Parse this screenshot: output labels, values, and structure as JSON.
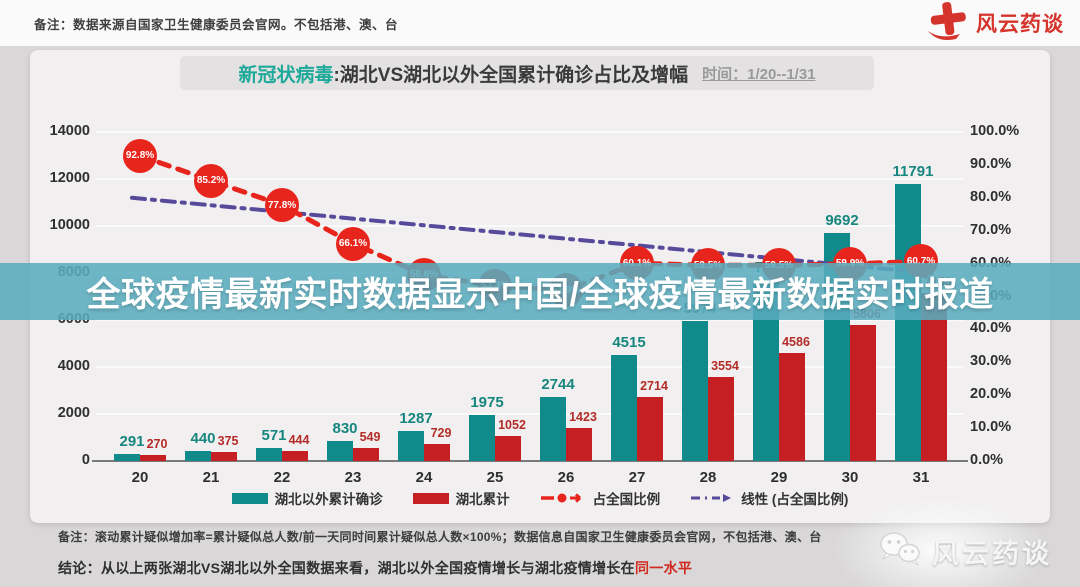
{
  "header": {
    "note": "备注：数据来源自国家卫生健康委员会官网。不包括港、澳、台",
    "brand": "风云药谈"
  },
  "chart": {
    "title_highlight": "新冠状病毒",
    "title_rest": ":湖北VS湖北以外全国累计确诊占比及增幅",
    "title_time": "时间：1/20--1/31"
  },
  "chart_data": {
    "type": "bar",
    "title": "新冠状病毒:湖北VS湖北以外全国累计确诊占比及增幅",
    "time_range": "1/20--1/31",
    "categories": [
      20,
      21,
      22,
      23,
      24,
      25,
      26,
      27,
      28,
      29,
      30,
      31
    ],
    "series": [
      {
        "name": "湖北以外累计确诊",
        "type": "bar",
        "color": "#118a8b",
        "label_color": "#17867f",
        "values": [
          291,
          440,
          571,
          830,
          1287,
          1975,
          2744,
          4515,
          5974,
          7711,
          9692,
          11791
        ]
      },
      {
        "name": "湖北累计",
        "type": "bar",
        "color": "#c51f24",
        "label_color": "#b42c28",
        "values": [
          270,
          375,
          444,
          549,
          729,
          1052,
          1423,
          2714,
          3554,
          4586,
          5806,
          7153
        ]
      },
      {
        "name": "占全国比例",
        "type": "line",
        "color": "#e8251d",
        "values_pct": [
          92.8,
          85.2,
          77.8,
          66.1,
          56.6,
          53.3,
          51.9,
          60.1,
          59.5,
          59.5,
          59.9,
          60.7
        ]
      },
      {
        "name": "线性 (占全国比例)",
        "type": "trendline",
        "color": "#574a9b",
        "start_pct": 80.0,
        "end_pct": 57.0
      }
    ],
    "ylim": [
      0,
      14000
    ],
    "y_ticks": [
      0,
      2000,
      4000,
      6000,
      8000,
      10000,
      12000,
      14000
    ],
    "y2lim": [
      0,
      100
    ],
    "y2_ticks": [
      "0.0%",
      "10.0%",
      "20.0%",
      "30.0%",
      "40.0%",
      "50.0%",
      "60.0%",
      "70.0%",
      "80.0%",
      "90.0%",
      "100.0%"
    ],
    "grid": true,
    "legend_position": "bottom"
  },
  "banner": {
    "text": "全球疫情最新实时数据显示中国/全球疫情最新数据实时报道"
  },
  "footer": {
    "note": "备注：滚动累计疑似增加率=累计疑似总人数/前一天同时间累计疑似总人数×100%；数据信息自国家卫生健康委员会官网，不包括港、澳、台",
    "conclusion_prefix": "结论：",
    "conclusion_body": "从以上两张湖北VS湖北以外全国数据来看，湖北以外全国疫情增长与湖北疫情增长在",
    "conclusion_highlight": "同一水平",
    "brand": "风云药谈"
  }
}
